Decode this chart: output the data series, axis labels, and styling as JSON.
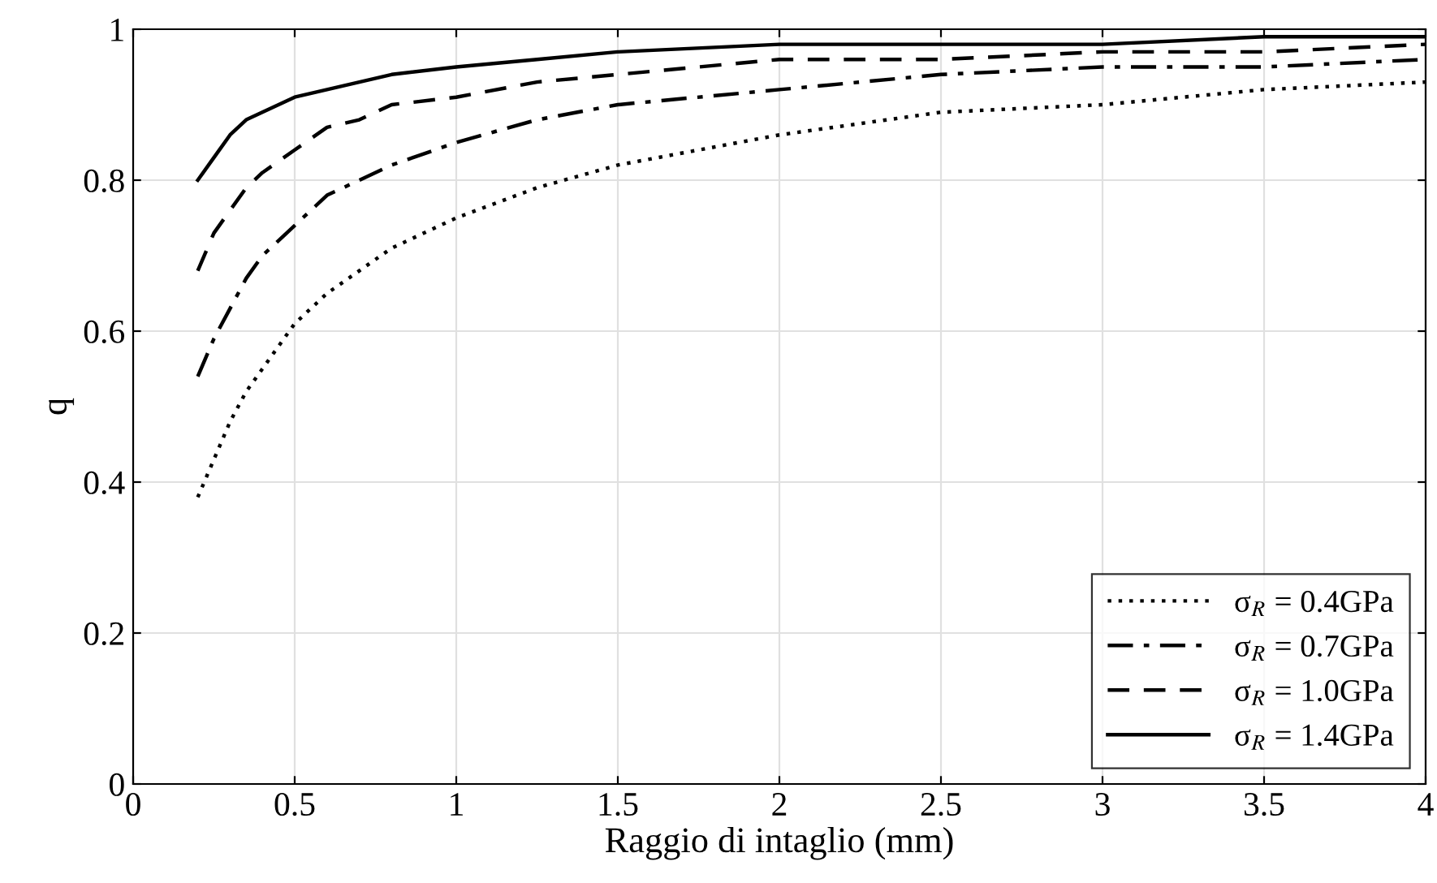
{
  "chart_data": {
    "type": "line",
    "xlabel": "Raggio di intaglio (mm)",
    "ylabel": "q",
    "x": [
      0.2,
      0.25,
      0.3,
      0.35,
      0.4,
      0.5,
      0.6,
      0.7,
      0.8,
      1,
      1.25,
      1.5,
      2,
      2.5,
      3,
      3.5,
      4
    ],
    "series": [
      {
        "name": "σ$_{R}$ = 0.4GPa",
        "color": "#000000",
        "line_style": "dotted",
        "values": [
          0.38,
          0.43,
          0.48,
          0.52,
          0.55,
          0.61,
          0.65,
          0.68,
          0.71,
          0.75,
          0.79,
          0.82,
          0.86,
          0.89,
          0.9,
          0.92,
          0.93
        ]
      },
      {
        "name": "σ$_{R}$ = 0.7GPa",
        "color": "#000000",
        "line_style": "dashdot",
        "values": [
          0.54,
          0.59,
          0.63,
          0.67,
          0.7,
          0.74,
          0.78,
          0.8,
          0.82,
          0.85,
          0.88,
          0.9,
          0.92,
          0.94,
          0.95,
          0.95,
          0.96
        ]
      },
      {
        "name": "σ$_{R}$ = 1.0GPa",
        "color": "#000000",
        "line_style": "dashed",
        "values": [
          0.68,
          0.73,
          0.76,
          0.79,
          0.81,
          0.84,
          0.87,
          0.88,
          0.9,
          0.91,
          0.93,
          0.94,
          0.96,
          0.96,
          0.97,
          0.97,
          0.98
        ]
      },
      {
        "name": "σ$_{R}$ = 1.4GPa",
        "color": "#000000",
        "line_style": "solid",
        "values": [
          0.8,
          0.83,
          0.86,
          0.88,
          0.89,
          0.91,
          0.92,
          0.93,
          0.94,
          0.95,
          0.96,
          0.97,
          0.98,
          0.98,
          0.98,
          0.99,
          0.99
        ]
      }
    ],
    "xlim": [
      0,
      4
    ],
    "xticks": [
      0,
      0.5,
      1,
      1.5,
      2,
      2.5,
      3,
      3.5,
      4
    ],
    "ylim": [
      0,
      1
    ],
    "yticks": [
      0,
      0.2,
      0.4,
      0.6,
      0.8,
      1
    ],
    "grid": true,
    "legend": "bottom right",
    "marker": "none"
  }
}
